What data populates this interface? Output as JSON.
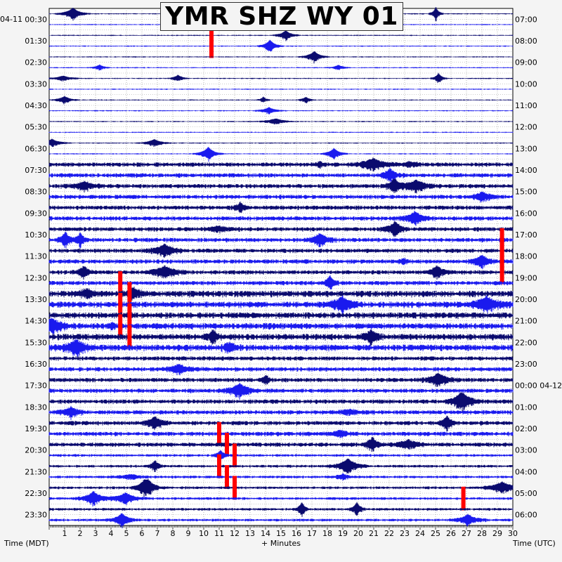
{
  "chart_data": {
    "type": "line",
    "title": "YMR SHZ WY 01",
    "start_date_left": "04-11",
    "next_date_right": "04-12",
    "left_labels": [
      "00:30",
      "01:30",
      "02:30",
      "03:30",
      "04:30",
      "05:30",
      "06:30",
      "07:30",
      "08:30",
      "09:30",
      "10:30",
      "11:30",
      "12:30",
      "13:30",
      "14:30",
      "15:30",
      "16:30",
      "17:30",
      "18:30",
      "19:30",
      "20:30",
      "21:30",
      "22:30",
      "23:30"
    ],
    "right_labels": [
      "07:00",
      "08:00",
      "09:00",
      "10:00",
      "11:00",
      "12:00",
      "13:00",
      "14:00",
      "15:00",
      "16:00",
      "17:00",
      "18:00",
      "19:00",
      "20:00",
      "21:00",
      "22:00",
      "23:00",
      "00:00 04-12",
      "01:00",
      "02:00",
      "03:00",
      "04:00",
      "05:00",
      "06:00"
    ],
    "x_ticks": [
      "1",
      "2",
      "3",
      "4",
      "5",
      "6",
      "7",
      "8",
      "9",
      "10",
      "11",
      "12",
      "13",
      "14",
      "15",
      "16",
      "17",
      "18",
      "19",
      "20",
      "21",
      "22",
      "23",
      "24",
      "25",
      "26",
      "27",
      "28",
      "29",
      "30"
    ],
    "xlabel": "+ Minutes",
    "ylabel_left": "Time (MDT)",
    "ylabel_right": "Time (UTC)",
    "xlim": [
      0,
      30
    ],
    "traces_count": 48,
    "trace_colors": [
      "#0a0a6e",
      "#1a1aee"
    ],
    "clip_color": "#ff0000",
    "grid": true,
    "clipped_events": [
      {
        "trace": 1,
        "minute": 10.5
      },
      {
        "trace": 3,
        "minute": 10.5
      },
      {
        "trace": 21,
        "minute": 29.3
      },
      {
        "trace": 22,
        "minute": 29.3
      },
      {
        "trace": 23,
        "minute": 29.3
      },
      {
        "trace": 24,
        "minute": 29.3
      },
      {
        "trace": 25,
        "minute": 4.6
      },
      {
        "trace": 26,
        "minute": 5.2
      },
      {
        "trace": 27,
        "minute": 4.6
      },
      {
        "trace": 28,
        "minute": 5.2
      },
      {
        "trace": 29,
        "minute": 4.6
      },
      {
        "trace": 30,
        "minute": 5.2
      },
      {
        "trace": 39,
        "minute": 11.0
      },
      {
        "trace": 40,
        "minute": 11.5
      },
      {
        "trace": 41,
        "minute": 12.0
      },
      {
        "trace": 42,
        "minute": 11.0
      },
      {
        "trace": 43,
        "minute": 11.5
      },
      {
        "trace": 44,
        "minute": 12.0
      },
      {
        "trace": 45,
        "minute": 26.8
      }
    ]
  }
}
